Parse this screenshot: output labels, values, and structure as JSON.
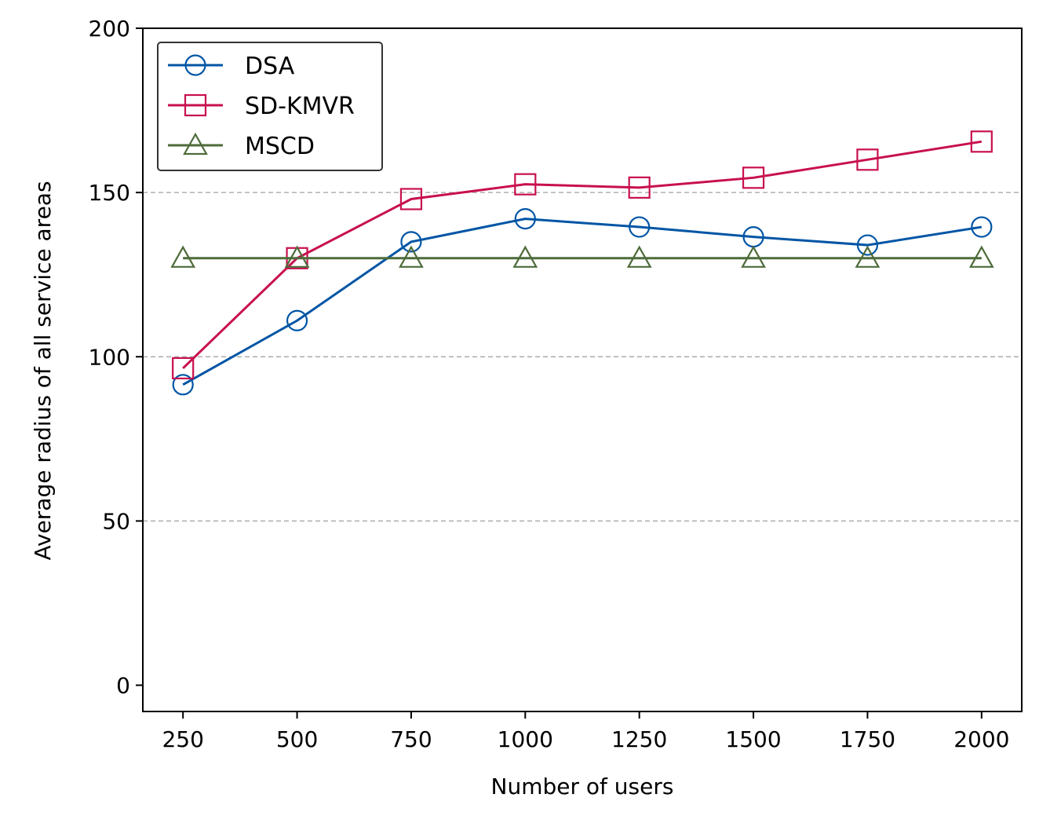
{
  "chart_data": {
    "type": "line",
    "title": "",
    "xlabel": "Number of users",
    "ylabel": "Average radius of all service areas",
    "x": [
      250,
      500,
      750,
      1000,
      1250,
      1500,
      1750,
      2000
    ],
    "xticks": [
      "250",
      "500",
      "750",
      "1000",
      "1250",
      "1500",
      "1750",
      "2000"
    ],
    "yticks": [
      "0",
      "50",
      "100",
      "150",
      "200"
    ],
    "ylim": [
      -8,
      200
    ],
    "xlim": [
      162,
      2088
    ],
    "grid": "horizontal dashed at 50, 100, 150",
    "legend_position": "top-left",
    "series": [
      {
        "name": "DSA",
        "marker": "circle",
        "color": "#0055a5",
        "values": [
          91.5,
          111,
          135,
          142,
          139.5,
          136.5,
          134,
          139.5
        ]
      },
      {
        "name": "SD-KMVR",
        "marker": "square",
        "color": "#c8104e",
        "values": [
          96.5,
          130,
          148,
          152.5,
          151.5,
          154.5,
          160,
          165.5
        ]
      },
      {
        "name": "MSCD",
        "marker": "triangle",
        "color": "#4e6b3a",
        "values": [
          130,
          130,
          130,
          130,
          130,
          130,
          130,
          130
        ]
      }
    ]
  }
}
